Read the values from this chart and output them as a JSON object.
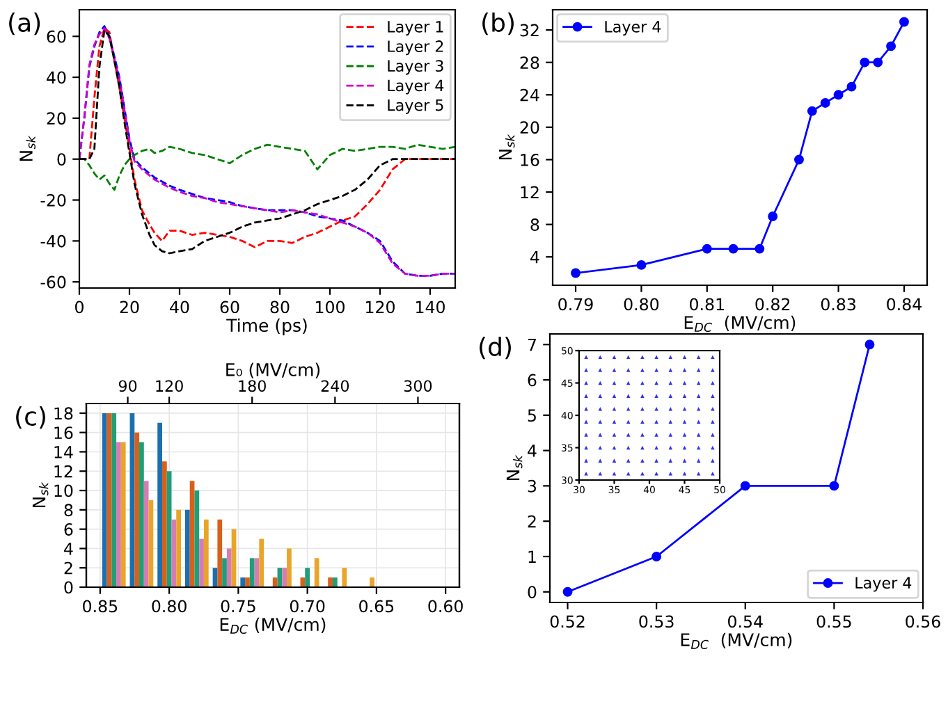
{
  "chart_data": [
    {
      "type": "line",
      "annotations": [
        "(a)"
      ],
      "xlabel": "Time (ps)",
      "ylabel": "N$_{sk}$",
      "xlim": [
        0,
        150
      ],
      "ylim": [
        -63,
        73
      ],
      "xticks": [
        0,
        20,
        40,
        60,
        80,
        100,
        120,
        140
      ],
      "yticks": [
        -60,
        -40,
        -20,
        0,
        20,
        40,
        60
      ],
      "legend": "top right",
      "line_style": "dashed",
      "marker": "none",
      "grid": false,
      "x": [
        0,
        2,
        4,
        6,
        8,
        10,
        12,
        14,
        16,
        18,
        20,
        22,
        25,
        28,
        30,
        33,
        36,
        40,
        45,
        50,
        55,
        60,
        65,
        70,
        75,
        80,
        85,
        90,
        95,
        100,
        105,
        110,
        115,
        120,
        125,
        130,
        135,
        140,
        145,
        150
      ],
      "series": [
        {
          "name": "Layer 1",
          "color": "#ff0000",
          "values": [
            0,
            0,
            0,
            30,
            55,
            64,
            62,
            48,
            35,
            20,
            5,
            -10,
            -25,
            -32,
            -36,
            -40,
            -35,
            -35,
            -37,
            -36,
            -37,
            -38,
            -40,
            -43,
            -40,
            -40,
            -41,
            -38,
            -36,
            -33,
            -30,
            -28,
            -22,
            -15,
            -5,
            0,
            0,
            0,
            0,
            0
          ]
        },
        {
          "name": "Layer 2",
          "color": "#0000ff",
          "values": [
            0,
            20,
            45,
            55,
            62,
            65,
            60,
            50,
            40,
            25,
            10,
            0,
            -4,
            -7,
            -9,
            -11,
            -13,
            -15,
            -17,
            -19,
            -20,
            -21,
            -23,
            -24,
            -25,
            -25,
            -25,
            -26,
            -28,
            -29,
            -30,
            -33,
            -36,
            -40,
            -50,
            -56,
            -57,
            -57,
            -56,
            -56
          ]
        },
        {
          "name": "Layer 3",
          "color": "#008000",
          "values": [
            0,
            0,
            -3,
            -7,
            -10,
            -8,
            -12,
            -15,
            -8,
            -3,
            0,
            2,
            4,
            5,
            3,
            4,
            6,
            5,
            3,
            2,
            0,
            -2,
            2,
            5,
            7,
            6,
            5,
            4,
            -5,
            2,
            5,
            4,
            5,
            6,
            6,
            5,
            7,
            6,
            5,
            6
          ]
        },
        {
          "name": "Layer 4",
          "color": "#cc00cc",
          "values": [
            0,
            21,
            46,
            56,
            61,
            64,
            59,
            49,
            39,
            24,
            9,
            -1,
            -5,
            -8,
            -10,
            -12,
            -14,
            -16,
            -18,
            -19,
            -21,
            -22,
            -23,
            -24,
            -25,
            -26,
            -25,
            -26,
            -27,
            -29,
            -31,
            -33,
            -36,
            -41,
            -51,
            -56,
            -57,
            -57,
            -56,
            -56
          ]
        },
        {
          "name": "Layer 5",
          "color": "#000000",
          "values": [
            0,
            0,
            0,
            5,
            45,
            63,
            60,
            48,
            35,
            18,
            3,
            -12,
            -27,
            -37,
            -42,
            -45,
            -46,
            -45,
            -44,
            -40,
            -38,
            -36,
            -33,
            -31,
            -30,
            -29,
            -27,
            -25,
            -22,
            -20,
            -18,
            -15,
            -10,
            -3,
            0,
            0,
            0,
            0,
            0,
            0
          ]
        }
      ]
    },
    {
      "type": "line",
      "annotations": [
        "(b)"
      ],
      "xlabel": "E$_{DC}$  (MV/cm)",
      "ylabel": "N$_{sk}$",
      "xlim": [
        0.7865,
        0.8435
      ],
      "ylim": [
        0.5,
        34.5
      ],
      "xticks": [
        {
          "value": 0.79,
          "label": "0.79"
        },
        {
          "value": 0.8,
          "label": "0.80"
        },
        {
          "value": 0.81,
          "label": "0.81"
        },
        {
          "value": 0.82,
          "label": "0.82"
        },
        {
          "value": 0.83,
          "label": "0.83"
        },
        {
          "value": 0.84,
          "label": "0.84"
        }
      ],
      "yticks": [
        4,
        8,
        12,
        16,
        20,
        24,
        28,
        32
      ],
      "legend": "top left",
      "marker": "circle",
      "line_style": "solid",
      "grid": false,
      "x": [
        0.79,
        0.8,
        0.81,
        0.814,
        0.818,
        0.82,
        0.824,
        0.826,
        0.828,
        0.83,
        0.832,
        0.834,
        0.836,
        0.838,
        0.84
      ],
      "series": [
        {
          "name": "Layer 4",
          "color": "#0000ff",
          "values": [
            2,
            3,
            5,
            5,
            5,
            9,
            16,
            22,
            23,
            24,
            25,
            28,
            28,
            30,
            33
          ]
        }
      ]
    },
    {
      "type": "bar",
      "annotations": [
        "(c)"
      ],
      "xlabel": "E$_{DC}$ (MV/cm)",
      "ylabel": "N$_{sk}$",
      "x2label": "E₀ (MV/cm)",
      "xlim": [
        0.86,
        0.59
      ],
      "ylim": [
        0,
        19
      ],
      "xticks": [
        {
          "value": 0.85,
          "label": "0.85"
        },
        {
          "value": 0.8,
          "label": "0.80"
        },
        {
          "value": 0.75,
          "label": "0.75"
        },
        {
          "value": 0.7,
          "label": "0.70"
        },
        {
          "value": 0.65,
          "label": "0.65"
        },
        {
          "value": 0.6,
          "label": "0.60"
        }
      ],
      "yticks": [
        0,
        2,
        4,
        6,
        8,
        10,
        12,
        14,
        16,
        18
      ],
      "x2lim": [
        60,
        330
      ],
      "x2ticks": [
        90,
        120,
        180,
        240,
        300
      ],
      "grid": true,
      "series": [
        {
          "color": "#1a6fb0",
          "x": [
            0.84,
            0.82,
            0.8,
            0.78,
            0.76,
            0.74
          ],
          "values": [
            18,
            18,
            17,
            8,
            2,
            1
          ]
        },
        {
          "color": "#d9601a",
          "x": [
            0.84,
            0.82,
            0.8,
            0.78,
            0.76,
            0.74,
            0.72,
            0.7,
            0.68
          ],
          "values": [
            18,
            16,
            13,
            11,
            7,
            1,
            1,
            1,
            1
          ]
        },
        {
          "color": "#1f9e78",
          "x": [
            0.84,
            0.82,
            0.8,
            0.78,
            0.76,
            0.74,
            0.72,
            0.7,
            0.68
          ],
          "values": [
            18,
            15,
            12,
            10,
            3,
            3,
            2,
            2,
            1
          ]
        },
        {
          "color": "#d67cb5",
          "x": [
            0.84,
            0.82,
            0.8,
            0.78,
            0.76,
            0.74,
            0.72
          ],
          "values": [
            15,
            11,
            7,
            5,
            4,
            3,
            2
          ]
        },
        {
          "color": "#e8a52a",
          "x": [
            0.84,
            0.82,
            0.8,
            0.78,
            0.76,
            0.74,
            0.72,
            0.7,
            0.68,
            0.66
          ],
          "values": [
            15,
            9,
            8,
            7,
            6,
            5,
            4,
            3,
            2,
            1
          ]
        }
      ]
    },
    {
      "type": "line",
      "annotations": [
        "(d)"
      ],
      "xlabel": "E$_{DC}$  (MV/cm)",
      "ylabel": "N$_{sk}$",
      "xlim": [
        0.518,
        0.56
      ],
      "ylim": [
        -0.3,
        7.3
      ],
      "xticks": [
        0.52,
        0.53,
        0.54,
        0.55,
        0.56
      ],
      "yticks": [
        0,
        1,
        2,
        3,
        4,
        5,
        6,
        7
      ],
      "legend": "bottom right",
      "marker": "circle",
      "line_style": "solid",
      "grid": false,
      "x": [
        0.52,
        0.53,
        0.54,
        0.55,
        0.554
      ],
      "series": [
        {
          "name": "Layer 4",
          "color": "#0000ff",
          "values": [
            0,
            1,
            3,
            3,
            7
          ]
        }
      ]
    },
    {
      "type": "scatter",
      "xlim": [
        30,
        50
      ],
      "ylim": [
        30,
        50
      ],
      "xticks": [
        30,
        35,
        40,
        45,
        50
      ],
      "yticks": [
        30,
        35,
        40,
        45,
        50
      ],
      "marker": "triangle",
      "series": [
        {
          "color": "#3333ee",
          "x": [
            31,
            33,
            35,
            37,
            39,
            41,
            43,
            45,
            47,
            49,
            31,
            33,
            35,
            37,
            39,
            41,
            43,
            45,
            47,
            49,
            31,
            33,
            35,
            37,
            39,
            41,
            43,
            45,
            47,
            49,
            31,
            33,
            35,
            37,
            39,
            41,
            43,
            45,
            47,
            49,
            31,
            33,
            35,
            37,
            39,
            41,
            43,
            45,
            47,
            49,
            31,
            33,
            35,
            37,
            39,
            41,
            43,
            45,
            47,
            49,
            31,
            33,
            35,
            37,
            39,
            41,
            43,
            45,
            47,
            49,
            31,
            33,
            35,
            37,
            39,
            41,
            43,
            45,
            47,
            49,
            31,
            33,
            35,
            37,
            39,
            41,
            43,
            45,
            47,
            49,
            31,
            33,
            35,
            37,
            39,
            41,
            43,
            45,
            47,
            49
          ],
          "values": [
            49,
            49,
            49,
            49,
            49,
            49,
            49,
            49,
            49,
            49,
            47,
            47,
            47,
            47,
            47,
            47,
            47,
            47,
            47,
            47,
            45,
            45,
            45,
            45,
            45,
            45,
            45,
            45,
            45,
            45,
            43,
            43,
            43,
            43,
            43,
            43,
            43,
            43,
            43,
            43,
            41,
            41,
            41,
            41,
            41,
            41,
            41,
            41,
            41,
            41,
            39,
            39,
            39,
            39,
            39,
            39,
            39,
            39,
            39,
            39,
            37,
            37,
            37,
            37,
            37,
            37,
            37,
            37,
            37,
            37,
            35,
            35,
            35,
            35,
            35,
            35,
            35,
            35,
            35,
            35,
            33,
            33,
            33,
            33,
            33,
            33,
            33,
            33,
            33,
            33,
            31,
            31,
            31,
            31,
            31,
            31,
            31,
            31,
            31,
            31
          ]
        }
      ]
    }
  ]
}
